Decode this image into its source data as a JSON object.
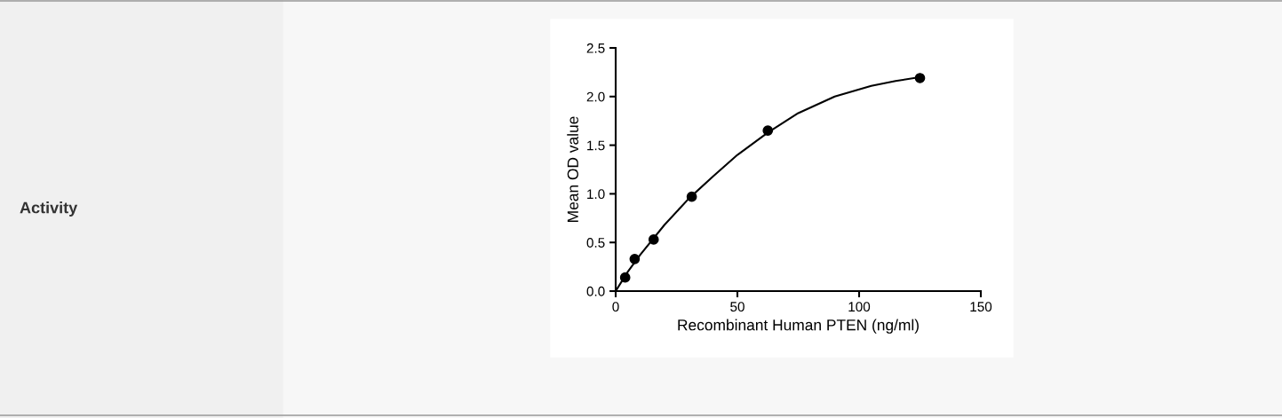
{
  "chart_data": {
    "type": "scatter",
    "xlabel": "Recombinant Human PTEN (ng/ml)",
    "ylabel": "Mean OD value",
    "annotations": [
      "Activity"
    ],
    "xlim": [
      0,
      150
    ],
    "xticks": [
      0,
      50,
      100,
      150
    ],
    "ylim": [
      0,
      2.5
    ],
    "yticks": [
      {
        "value": 0,
        "label": "0.0"
      },
      0.5,
      {
        "value": 1,
        "label": "1.0"
      },
      1.5,
      {
        "value": 2,
        "label": "2.0"
      },
      2.5
    ],
    "grid": false,
    "legend": false,
    "series": [
      {
        "color": "#000000",
        "marker": "circle",
        "x": [
          3.9,
          7.8,
          15.6,
          31.25,
          62.5,
          125
        ],
        "values": [
          0.14,
          0.33,
          0.53,
          0.97,
          1.65,
          2.19
        ]
      },
      {
        "type": "line",
        "color": "#000000",
        "marker": "none",
        "line_style": "solid",
        "x": [
          0,
          5,
          10,
          20,
          30,
          40,
          50,
          62.5,
          75,
          90,
          105,
          115,
          125
        ],
        "values": [
          0,
          0.2,
          0.37,
          0.68,
          0.95,
          1.18,
          1.4,
          1.63,
          1.83,
          2.0,
          2.11,
          2.16,
          2.2
        ]
      }
    ]
  }
}
